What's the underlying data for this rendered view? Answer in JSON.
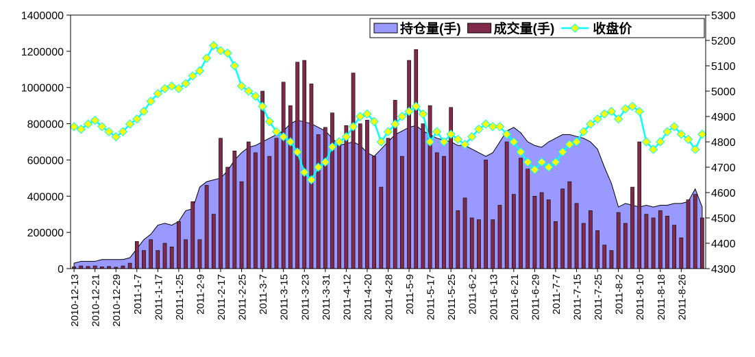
{
  "chart_data": {
    "type": "combo",
    "categories": [
      "2010-12-13",
      null,
      null,
      "2010-12-21",
      null,
      null,
      "2010-12-29",
      null,
      null,
      "2011-1-7",
      null,
      null,
      "2011-1-17",
      null,
      null,
      "2011-1-25",
      null,
      null,
      "2011-2-9",
      null,
      null,
      "2011-2-17",
      null,
      null,
      "2011-2-25",
      null,
      null,
      "2011-3-7",
      null,
      null,
      "2011-3-15",
      null,
      null,
      "2011-3-23",
      null,
      null,
      "2011-3-31",
      null,
      null,
      "2011-4-12",
      null,
      null,
      "2011-4-20",
      null,
      null,
      "2011-4-28",
      null,
      null,
      "2011-5-9",
      null,
      null,
      "2011-5-17",
      null,
      null,
      "2011-5-25",
      null,
      null,
      "2011-6-2",
      null,
      null,
      "2011-6-13",
      null,
      null,
      "2011-6-21",
      null,
      null,
      "2011-6-29",
      null,
      null,
      "2011-7-7",
      null,
      null,
      "2011-7-15",
      null,
      null,
      "2011-7-25",
      null,
      null,
      "2011-8-2",
      null,
      null,
      "2011-8-10",
      null,
      null,
      "2011-8-18",
      null,
      null,
      "2011-8-26",
      null,
      null,
      null
    ],
    "series": [
      {
        "name": "持仓量(手)",
        "type": "area",
        "color": "#9999ff",
        "values": [
          30000,
          40000,
          40000,
          40000,
          50000,
          50000,
          50000,
          50000,
          60000,
          110000,
          160000,
          190000,
          240000,
          250000,
          240000,
          260000,
          320000,
          330000,
          450000,
          480000,
          490000,
          500000,
          540000,
          600000,
          640000,
          670000,
          680000,
          700000,
          720000,
          740000,
          760000,
          800000,
          820000,
          810000,
          800000,
          780000,
          760000,
          720000,
          680000,
          690000,
          700000,
          680000,
          640000,
          620000,
          660000,
          700000,
          740000,
          760000,
          780000,
          790000,
          760000,
          740000,
          720000,
          710000,
          700000,
          680000,
          680000,
          660000,
          640000,
          620000,
          640000,
          700000,
          760000,
          780000,
          750000,
          700000,
          680000,
          670000,
          700000,
          720000,
          740000,
          740000,
          730000,
          720000,
          700000,
          660000,
          560000,
          470000,
          340000,
          360000,
          350000,
          340000,
          350000,
          340000,
          350000,
          350000,
          360000,
          360000,
          370000,
          440000,
          340000
        ]
      },
      {
        "name": "成交量(手)",
        "type": "bar",
        "color": "#7f2a4a",
        "values": [
          10000,
          15000,
          12000,
          15000,
          10000,
          12000,
          8000,
          15000,
          30000,
          150000,
          100000,
          160000,
          100000,
          140000,
          120000,
          260000,
          160000,
          370000,
          160000,
          460000,
          300000,
          720000,
          560000,
          650000,
          480000,
          700000,
          640000,
          980000,
          620000,
          720000,
          1030000,
          900000,
          1140000,
          1150000,
          1020000,
          740000,
          780000,
          860000,
          700000,
          790000,
          1080000,
          800000,
          820000,
          620000,
          450000,
          720000,
          930000,
          620000,
          1150000,
          1210000,
          800000,
          900000,
          640000,
          620000,
          890000,
          320000,
          390000,
          280000,
          270000,
          600000,
          270000,
          350000,
          700000,
          410000,
          610000,
          550000,
          400000,
          420000,
          380000,
          260000,
          440000,
          480000,
          360000,
          250000,
          320000,
          210000,
          130000,
          100000,
          310000,
          250000,
          450000,
          700000,
          300000,
          280000,
          320000,
          290000,
          240000,
          170000,
          380000,
          410000,
          280000
        ]
      },
      {
        "name": "收盘价",
        "type": "line",
        "axis": "y2",
        "color": "#00ffff",
        "marker_color": "#ffff00",
        "values": [
          4860,
          4850,
          4870,
          4885,
          4860,
          4840,
          4820,
          4840,
          4870,
          4890,
          4920,
          4960,
          4990,
          5010,
          5020,
          5010,
          5030,
          5060,
          5080,
          5130,
          5180,
          5160,
          5150,
          5100,
          5020,
          5000,
          4980,
          4940,
          4880,
          4840,
          4820,
          4800,
          4760,
          4680,
          4650,
          4700,
          4720,
          4780,
          4800,
          4820,
          4860,
          4900,
          4910,
          4880,
          4800,
          4840,
          4870,
          4900,
          4920,
          4940,
          4910,
          4800,
          4840,
          4800,
          4830,
          4810,
          4790,
          4820,
          4850,
          4870,
          4860,
          4860,
          4830,
          4800,
          4760,
          4720,
          4690,
          4720,
          4700,
          4720,
          4760,
          4790,
          4800,
          4840,
          4870,
          4890,
          4910,
          4920,
          4890,
          4930,
          4940,
          4920,
          4800,
          4770,
          4800,
          4840,
          4860,
          4830,
          4810,
          4770,
          4830
        ]
      }
    ],
    "ylim": [
      0,
      1400000
    ],
    "yticks": [
      0,
      200000,
      400000,
      600000,
      800000,
      1000000,
      1200000,
      1400000
    ],
    "y2lim": [
      4300,
      5300
    ],
    "y2ticks": [
      4300,
      4400,
      4500,
      4600,
      4700,
      4800,
      4900,
      5000,
      5100,
      5200,
      5300
    ],
    "legend": "top-right"
  }
}
